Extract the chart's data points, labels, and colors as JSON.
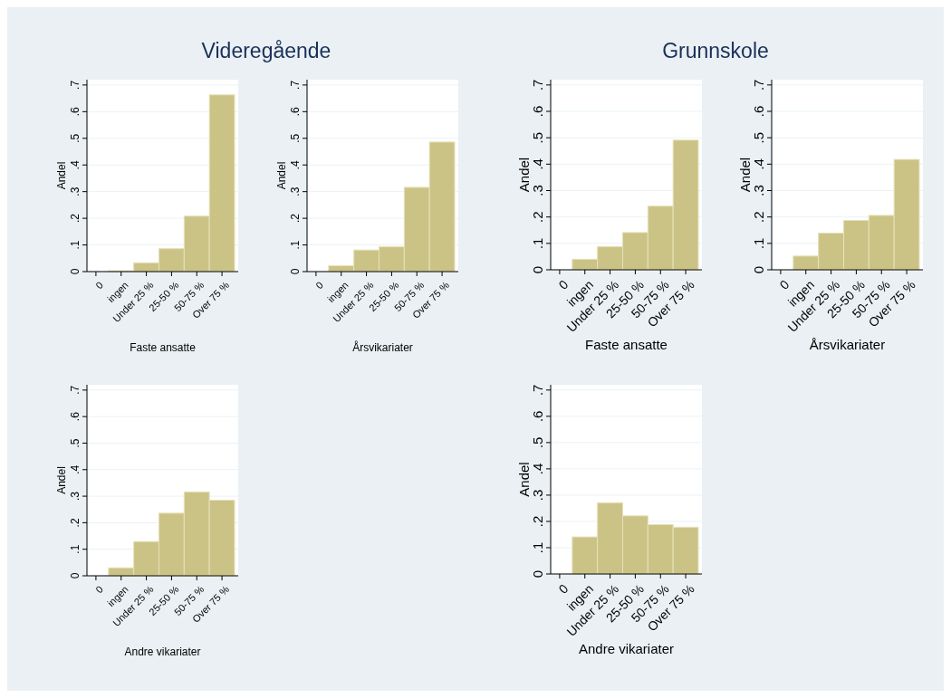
{
  "chart_data": [
    {
      "type": "bar",
      "title": "Videregående",
      "xlabel": "Faste ansatte",
      "ylabel": "Andel",
      "categories": [
        "0",
        "ingen",
        "Under 25 %",
        "25-50 %",
        "50-75 %",
        "Over 75 %"
      ],
      "values": [
        0,
        0.003,
        0.033,
        0.086,
        0.208,
        0.663
      ],
      "color": "#cbc386",
      "ylim": [
        0,
        0.72
      ],
      "yticks": [
        {
          "value": 0,
          "label": "0"
        },
        {
          "value": 0.1,
          "label": ".1"
        },
        {
          "value": 0.2,
          "label": ".2"
        },
        {
          "value": 0.3,
          "label": ".3"
        },
        {
          "value": 0.4,
          "label": ".4"
        },
        {
          "value": 0.5,
          "label": ".5"
        },
        {
          "value": 0.6,
          "label": ".6"
        },
        {
          "value": 0.7,
          "label": ".7"
        }
      ],
      "grid": "y"
    },
    {
      "type": "bar",
      "xlabel": "Årsvikariater",
      "ylabel": "Andel",
      "categories": [
        "0",
        "ingen",
        "Under 25 %",
        "25-50 %",
        "50-75 %",
        "Over 75 %"
      ],
      "values": [
        0,
        0.022,
        0.081,
        0.093,
        0.316,
        0.486
      ],
      "color": "#cbc386",
      "ylim": [
        0,
        0.72
      ],
      "yticks": [
        {
          "value": 0,
          "label": "0"
        },
        {
          "value": 0.1,
          "label": ".1"
        },
        {
          "value": 0.2,
          "label": ".2"
        },
        {
          "value": 0.3,
          "label": ".3"
        },
        {
          "value": 0.4,
          "label": ".4"
        },
        {
          "value": 0.5,
          "label": ".5"
        },
        {
          "value": 0.6,
          "label": ".6"
        },
        {
          "value": 0.7,
          "label": ".7"
        }
      ],
      "grid": "y"
    },
    {
      "type": "bar",
      "title": "Grunnskole",
      "xlabel": "Faste ansatte",
      "ylabel": "Andel",
      "categories": [
        "0",
        "ingen",
        "Under 25 %",
        "25-50 %",
        "50-75 %",
        "Over 75 %"
      ],
      "values": [
        0,
        0.04,
        0.088,
        0.141,
        0.241,
        0.491
      ],
      "color": "#cbc386",
      "ylim": [
        0,
        0.72
      ],
      "yticks": [
        {
          "value": 0,
          "label": "0"
        },
        {
          "value": 0.1,
          "label": ".1"
        },
        {
          "value": 0.2,
          "label": ".2"
        },
        {
          "value": 0.3,
          "label": ".3"
        },
        {
          "value": 0.4,
          "label": ".4"
        },
        {
          "value": 0.5,
          "label": ".5"
        },
        {
          "value": 0.6,
          "label": ".6"
        },
        {
          "value": 0.7,
          "label": ".7"
        }
      ],
      "grid": "y"
    },
    {
      "type": "bar",
      "xlabel": "Årsvikariater",
      "ylabel": "Andel",
      "categories": [
        "0",
        "ingen",
        "Under 25 %",
        "25-50 %",
        "50-75 %",
        "Over 75 %"
      ],
      "values": [
        0,
        0.052,
        0.139,
        0.187,
        0.206,
        0.418
      ],
      "color": "#cbc386",
      "ylim": [
        0,
        0.72
      ],
      "yticks": [
        {
          "value": 0,
          "label": "0"
        },
        {
          "value": 0.1,
          "label": ".1"
        },
        {
          "value": 0.2,
          "label": ".2"
        },
        {
          "value": 0.3,
          "label": ".3"
        },
        {
          "value": 0.4,
          "label": ".4"
        },
        {
          "value": 0.5,
          "label": ".5"
        },
        {
          "value": 0.6,
          "label": ".6"
        },
        {
          "value": 0.7,
          "label": ".7"
        }
      ],
      "grid": "y"
    },
    {
      "type": "bar",
      "xlabel": "Andre vikariater",
      "ylabel": "Andel",
      "categories": [
        "0",
        "ingen",
        "Under 25 %",
        "25-50 %",
        "50-75 %",
        "Over 75 %"
      ],
      "values": [
        0,
        0.03,
        0.129,
        0.236,
        0.316,
        0.285
      ],
      "color": "#cbc386",
      "ylim": [
        0,
        0.72
      ],
      "yticks": [
        {
          "value": 0,
          "label": "0"
        },
        {
          "value": 0.1,
          "label": ".1"
        },
        {
          "value": 0.2,
          "label": ".2"
        },
        {
          "value": 0.3,
          "label": ".3"
        },
        {
          "value": 0.4,
          "label": ".4"
        },
        {
          "value": 0.5,
          "label": ".5"
        },
        {
          "value": 0.6,
          "label": ".6"
        },
        {
          "value": 0.7,
          "label": ".7"
        }
      ],
      "grid": "y"
    },
    {
      "type": "bar",
      "xlabel": "Andre vikariater",
      "ylabel": "Andel",
      "categories": [
        "0",
        "ingen",
        "Under 25 %",
        "25-50 %",
        "50-75 %",
        "Over 75 %"
      ],
      "values": [
        0,
        0.141,
        0.271,
        0.221,
        0.188,
        0.178
      ],
      "color": "#cbc386",
      "ylim": [
        0,
        0.72
      ],
      "yticks": [
        {
          "value": 0,
          "label": "0"
        },
        {
          "value": 0.1,
          "label": ".1"
        },
        {
          "value": 0.2,
          "label": ".2"
        },
        {
          "value": 0.3,
          "label": ".3"
        },
        {
          "value": 0.4,
          "label": ".4"
        },
        {
          "value": 0.5,
          "label": ".5"
        },
        {
          "value": 0.6,
          "label": ".6"
        },
        {
          "value": 0.7,
          "label": ".7"
        }
      ],
      "grid": "y"
    }
  ]
}
